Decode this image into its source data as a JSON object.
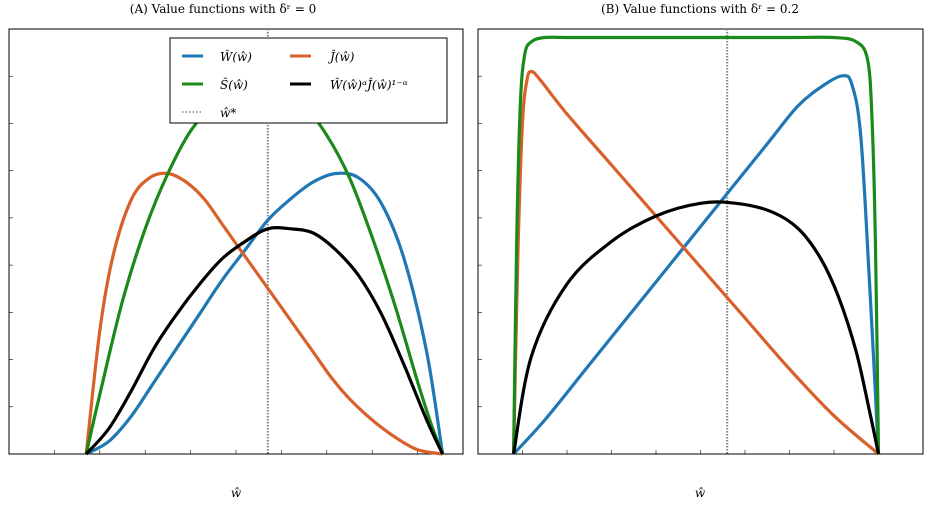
{
  "colors": {
    "W": "#1f77b4",
    "J": "#d95f2b",
    "S": "#1a8a1a",
    "Nash": "#000000",
    "wstar": "#808080"
  },
  "chart_data": [
    {
      "type": "line",
      "title": "(A) Value functions with δʳ = 0",
      "xlabel": "ŵ",
      "ylabel": "",
      "xlim": [
        0,
        1
      ],
      "ylim": [
        0,
        1
      ],
      "tick_labels_shown": false,
      "grid": false,
      "legend": {
        "placement": "top-right",
        "columns": 2,
        "entries": [
          {
            "key": "W",
            "label": "Ŵ(ŵ)",
            "style": "solid"
          },
          {
            "key": "J",
            "label": "Ĵ(ŵ)",
            "style": "solid"
          },
          {
            "key": "S",
            "label": "Ŝ(ŵ)",
            "style": "solid"
          },
          {
            "key": "Nash",
            "label": "Ŵ(ŵ)ᵅĴ(ŵ)¹⁻ᵅ",
            "style": "solid"
          },
          {
            "key": "wstar",
            "label": "ŵ*",
            "style": "dotted"
          }
        ]
      },
      "wstar": 0.57,
      "series": [
        {
          "key": "W",
          "x": [
            0.17,
            0.22,
            0.27,
            0.32,
            0.37,
            0.42,
            0.47,
            0.52,
            0.57,
            0.62,
            0.67,
            0.72,
            0.77,
            0.82,
            0.87,
            0.92,
            0.955
          ],
          "y": [
            0.0,
            0.03,
            0.09,
            0.17,
            0.25,
            0.33,
            0.41,
            0.48,
            0.55,
            0.6,
            0.64,
            0.66,
            0.65,
            0.59,
            0.46,
            0.24,
            0.0
          ]
        },
        {
          "key": "J",
          "x": [
            0.17,
            0.2,
            0.23,
            0.27,
            0.31,
            0.35,
            0.39,
            0.43,
            0.47,
            0.51,
            0.55,
            0.59,
            0.63,
            0.67,
            0.71,
            0.75,
            0.8,
            0.85,
            0.9,
            0.955
          ],
          "y": [
            0.0,
            0.29,
            0.47,
            0.6,
            0.65,
            0.66,
            0.64,
            0.6,
            0.54,
            0.48,
            0.42,
            0.36,
            0.3,
            0.24,
            0.18,
            0.13,
            0.08,
            0.04,
            0.01,
            0.0
          ]
        },
        {
          "key": "S",
          "x": [
            0.17,
            0.2,
            0.25,
            0.3,
            0.35,
            0.4,
            0.45,
            0.5,
            0.55,
            0.6,
            0.65,
            0.7,
            0.75,
            0.8,
            0.85,
            0.9,
            0.93,
            0.955
          ],
          "y": [
            0.0,
            0.14,
            0.36,
            0.53,
            0.66,
            0.76,
            0.82,
            0.86,
            0.87,
            0.86,
            0.82,
            0.75,
            0.65,
            0.51,
            0.35,
            0.17,
            0.07,
            0.0
          ]
        },
        {
          "key": "Nash",
          "x": [
            0.17,
            0.22,
            0.27,
            0.32,
            0.37,
            0.42,
            0.47,
            0.52,
            0.57,
            0.62,
            0.67,
            0.72,
            0.77,
            0.82,
            0.87,
            0.92,
            0.955
          ],
          "y": [
            0.0,
            0.06,
            0.15,
            0.25,
            0.33,
            0.4,
            0.46,
            0.5,
            0.53,
            0.53,
            0.52,
            0.48,
            0.42,
            0.33,
            0.21,
            0.08,
            0.0
          ]
        }
      ]
    },
    {
      "type": "line",
      "title": "(B) Value functions with δʳ = 0.2",
      "xlabel": "ŵ",
      "ylabel": "",
      "xlim": [
        0,
        1
      ],
      "ylim": [
        0,
        1
      ],
      "tick_labels_shown": false,
      "grid": false,
      "wstar": 0.56,
      "series": [
        {
          "key": "W",
          "x": [
            0.08,
            0.15,
            0.25,
            0.35,
            0.45,
            0.55,
            0.65,
            0.72,
            0.78,
            0.82,
            0.84,
            0.86,
            0.88,
            0.9
          ],
          "y": [
            0.0,
            0.08,
            0.21,
            0.34,
            0.47,
            0.6,
            0.73,
            0.82,
            0.87,
            0.89,
            0.87,
            0.75,
            0.4,
            0.0
          ]
        },
        {
          "key": "J",
          "x": [
            0.08,
            0.09,
            0.1,
            0.11,
            0.12,
            0.14,
            0.2,
            0.3,
            0.4,
            0.5,
            0.6,
            0.7,
            0.8,
            0.9
          ],
          "y": [
            0.0,
            0.48,
            0.78,
            0.88,
            0.9,
            0.88,
            0.8,
            0.68,
            0.56,
            0.44,
            0.32,
            0.2,
            0.09,
            0.0
          ]
        },
        {
          "key": "S",
          "x": [
            0.08,
            0.087,
            0.095,
            0.105,
            0.12,
            0.15,
            0.2,
            0.3,
            0.5,
            0.7,
            0.8,
            0.85,
            0.875,
            0.885,
            0.893,
            0.9
          ],
          "y": [
            0.0,
            0.5,
            0.82,
            0.94,
            0.97,
            0.98,
            0.98,
            0.98,
            0.98,
            0.98,
            0.98,
            0.97,
            0.93,
            0.8,
            0.5,
            0.0
          ]
        },
        {
          "key": "Nash",
          "x": [
            0.08,
            0.12,
            0.2,
            0.3,
            0.4,
            0.5,
            0.58,
            0.66,
            0.72,
            0.77,
            0.81,
            0.85,
            0.88,
            0.9
          ],
          "y": [
            0.0,
            0.23,
            0.4,
            0.5,
            0.56,
            0.59,
            0.59,
            0.57,
            0.53,
            0.46,
            0.37,
            0.24,
            0.1,
            0.0
          ]
        }
      ]
    }
  ]
}
